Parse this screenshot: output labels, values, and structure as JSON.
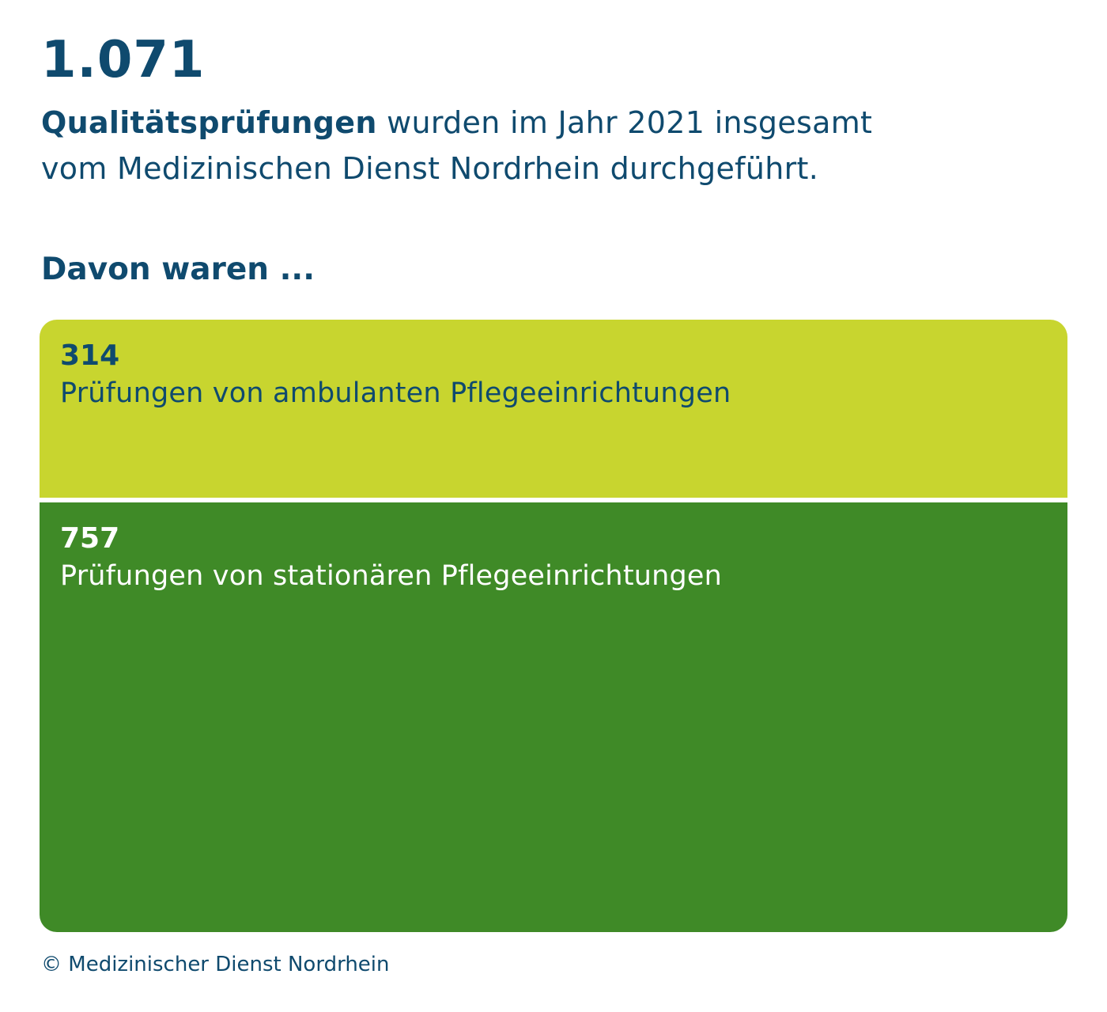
{
  "headline": {
    "total": "1.071",
    "intro_bold": "Qualitätsprüfungen",
    "intro_rest": " wurden im Jahr 2021 insgesamt",
    "intro_line2": "vom Medizinischen Dienst Nordrhein durchgeführt."
  },
  "subheading": "Davon waren ...",
  "chart_data": {
    "type": "bar",
    "orientation": "stacked-vertical-area",
    "categories": [
      "Prüfungen von ambulanten Pflegeeinrichtungen",
      "Prüfungen von stationären Pflegeeinrichtungen"
    ],
    "values": [
      314,
      757
    ],
    "value_labels": [
      "314",
      "757"
    ],
    "colors": [
      "#c8d52f",
      "#3f8a27"
    ],
    "text_colors": [
      "#0f4a6e",
      "#ffffff"
    ],
    "total": 1071
  },
  "footer": {
    "copyright": "© Medizinischer Dienst Nordrhein"
  }
}
